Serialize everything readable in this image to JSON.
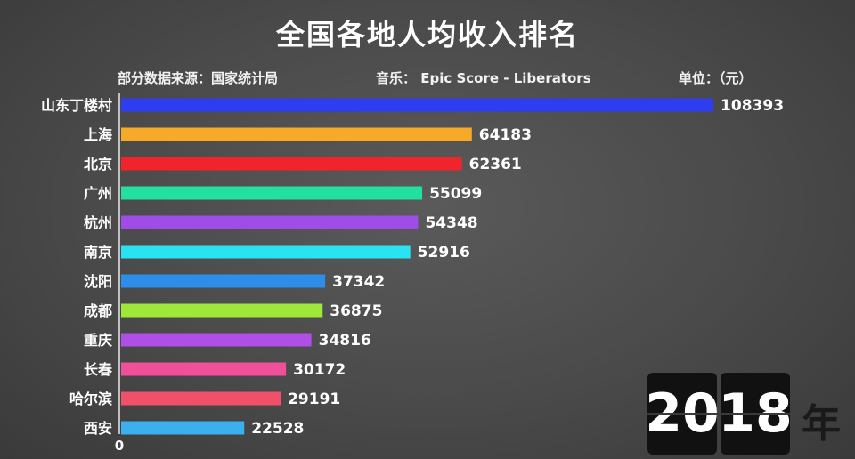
{
  "chart_data": {
    "type": "bar",
    "orientation": "horizontal",
    "title": "全国各地人均收入排名",
    "source_note": "部分数据来源：国家统计局",
    "music_note": "音乐：  Epic Score - Liberators",
    "unit_note": "单位：（元）",
    "year": {
      "left": "20",
      "right": "18",
      "suffix": "年"
    },
    "x_zero_label": "0",
    "xlim": [
      0,
      118000
    ],
    "categories": [
      "山东丁楼村",
      "上海",
      "北京",
      "广州",
      "杭州",
      "南京",
      "沈阳",
      "成都",
      "重庆",
      "长春",
      "哈尔滨",
      "西安"
    ],
    "values": [
      108393,
      64183,
      62361,
      55099,
      54348,
      52916,
      37342,
      36875,
      34816,
      30172,
      29191,
      22528
    ],
    "value_labels": [
      "108393",
      "64183",
      "62361",
      "55099",
      "54348",
      "52916",
      "37342",
      "36875",
      "34816",
      "30172",
      "29191",
      "22528"
    ],
    "colors": [
      "#2f3df0",
      "#f7a928",
      "#f0242a",
      "#24e0a0",
      "#a04de8",
      "#29e4f0",
      "#2d8de8",
      "#9ee83a",
      "#b04ee8",
      "#f04f9a",
      "#f0506a",
      "#3ab0ee"
    ]
  }
}
